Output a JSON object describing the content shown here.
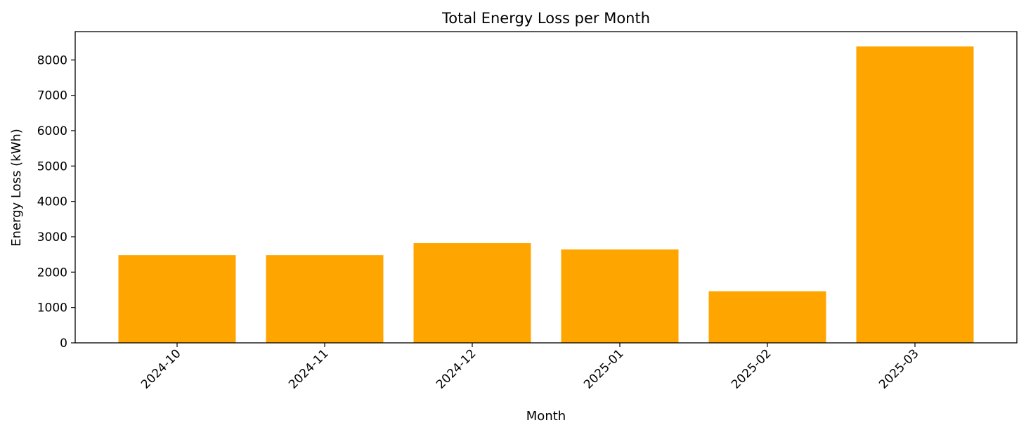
{
  "chart_data": {
    "type": "bar",
    "title": "Total Energy Loss per Month",
    "xlabel": "Month",
    "ylabel": "Energy Loss (kWh)",
    "categories": [
      "2024-10",
      "2024-11",
      "2024-12",
      "2025-01",
      "2025-02",
      "2025-03"
    ],
    "values": [
      2480,
      2480,
      2820,
      2640,
      1460,
      8380
    ],
    "ylim": [
      0,
      8800
    ],
    "yticks": [
      0,
      1000,
      2000,
      3000,
      4000,
      5000,
      6000,
      7000,
      8000
    ],
    "ytick_labels": [
      "0",
      "1000",
      "2000",
      "3000",
      "4000",
      "5000",
      "6000",
      "7000",
      "8000"
    ],
    "xtick_rotation_deg": 45,
    "bar_color": "#FFA500",
    "grid": false,
    "legend": "none"
  }
}
